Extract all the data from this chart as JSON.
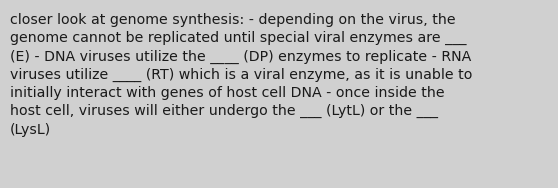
{
  "text": "closer look at genome synthesis: - depending on the virus, the\ngenome cannot be replicated until special viral enzymes are ___\n(E) - DNA viruses utilize the ____ (DP) enzymes to replicate - RNA\nviruses utilize ____ (RT) which is a viral enzyme, as it is unable to\ninitially interact with genes of host cell DNA - once inside the\nhost cell, viruses will either undergo the ___ (LytL) or the ___\n(LysL)",
  "background_color": "#d0d0d0",
  "text_color": "#1a1a1a",
  "font_size": 10.2,
  "fig_width": 5.58,
  "fig_height": 1.88,
  "dpi": 100
}
